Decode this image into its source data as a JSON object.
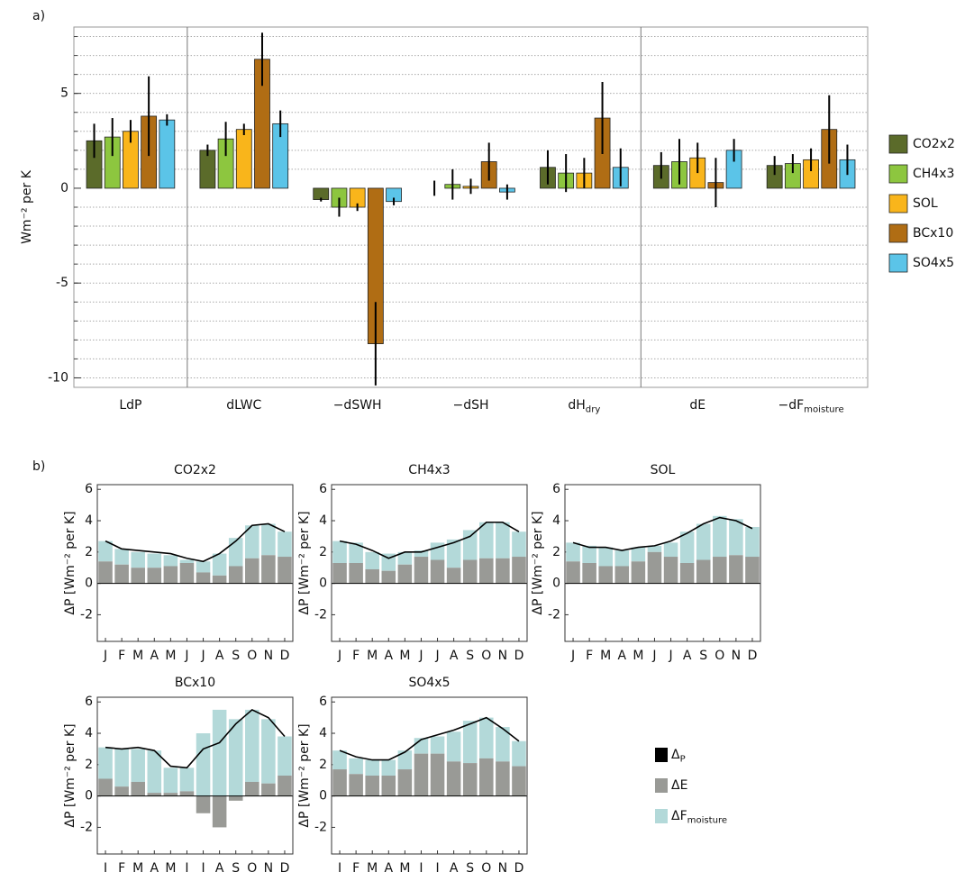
{
  "chart_data": [
    {
      "type": "bar",
      "panel_label": "a)",
      "ylabel": "Wm⁻² per K",
      "categories": [
        "LdP",
        "dLWC",
        "−dSWH",
        "−dSH",
        "dH_dry",
        "dE",
        "−dF_moisture"
      ],
      "ylim": [
        -10.5,
        8.5
      ],
      "yticks": [
        -10,
        -5,
        0,
        5
      ],
      "minor_yticks": [
        -10,
        -9,
        -8,
        -7,
        -6,
        -5,
        -4,
        -3,
        -2,
        -1,
        1,
        2,
        3,
        4,
        5,
        6,
        7,
        8
      ],
      "grid": true,
      "legend": "right",
      "series": [
        {
          "name": "CO2x2",
          "color": "#5b6b2a",
          "values": [
            2.5,
            2.0,
            -0.6,
            0.0,
            1.1,
            1.2,
            1.2
          ],
          "errors": [
            0.9,
            0.3,
            0.1,
            0.4,
            0.9,
            0.7,
            0.5
          ]
        },
        {
          "name": "CH4x3",
          "color": "#8dc63f",
          "values": [
            2.7,
            2.6,
            -1.0,
            0.2,
            0.8,
            1.4,
            1.3
          ],
          "errors": [
            1.0,
            0.9,
            0.5,
            0.8,
            1.0,
            1.2,
            0.5
          ]
        },
        {
          "name": "SOL",
          "color": "#f9b51b",
          "values": [
            3.0,
            3.1,
            -1.0,
            0.1,
            0.8,
            1.6,
            1.5
          ],
          "errors": [
            0.6,
            0.3,
            0.2,
            0.4,
            0.8,
            0.8,
            0.6
          ]
        },
        {
          "name": "BCx10",
          "color": "#b06d14",
          "values": [
            3.8,
            6.8,
            -8.2,
            1.4,
            3.7,
            0.3,
            3.1
          ],
          "errors": [
            2.1,
            1.4,
            2.2,
            1.0,
            1.9,
            1.3,
            1.8
          ]
        },
        {
          "name": "SO4x5",
          "color": "#5bc4e8",
          "values": [
            3.6,
            3.4,
            -0.7,
            -0.2,
            1.1,
            2.0,
            1.5
          ],
          "errors": [
            0.3,
            0.7,
            0.2,
            0.4,
            1.0,
            0.6,
            0.8
          ]
        }
      ]
    },
    {
      "type": "combo",
      "panel_label": "b)",
      "title": "CO2x2",
      "ylabel": "ΔP [Wm⁻² per K]",
      "categories": [
        "J",
        "F",
        "M",
        "A",
        "M",
        "J",
        "J",
        "A",
        "S",
        "O",
        "N",
        "D"
      ],
      "ylim": [
        -3.7,
        6.3
      ],
      "yticks": [
        -2,
        0,
        2,
        4,
        6
      ],
      "series": [
        {
          "name": "Δ_P",
          "color": "#000000",
          "mark": "line",
          "values": [
            2.7,
            2.2,
            2.1,
            2.0,
            1.9,
            1.6,
            1.4,
            1.9,
            2.7,
            3.7,
            3.8,
            3.3
          ]
        },
        {
          "name": "ΔE",
          "color": "#999a96",
          "mark": "bar",
          "values": [
            1.4,
            1.2,
            1.0,
            1.0,
            1.1,
            1.3,
            0.7,
            0.5,
            1.1,
            1.6,
            1.8,
            1.7
          ]
        },
        {
          "name": "ΔF_moisture",
          "color": "#b3d9d9",
          "mark": "bar",
          "values": [
            1.3,
            1.0,
            1.0,
            0.9,
            0.7,
            0.2,
            0.7,
            1.4,
            1.8,
            2.1,
            2.0,
            1.6
          ]
        }
      ]
    },
    {
      "type": "combo",
      "title": "CH4x3",
      "categories": [
        "J",
        "F",
        "M",
        "A",
        "M",
        "J",
        "J",
        "A",
        "S",
        "O",
        "N",
        "D"
      ],
      "ylim": [
        -3.7,
        6.3
      ],
      "yticks": [
        -2,
        0,
        2,
        4,
        6
      ],
      "series": [
        {
          "values": [
            2.7,
            2.5,
            2.1,
            1.6,
            2.0,
            2.0,
            2.3,
            2.6,
            3.0,
            3.9,
            3.9,
            3.3
          ]
        },
        {
          "values": [
            1.3,
            1.3,
            0.9,
            0.8,
            1.2,
            1.7,
            1.5,
            1.0,
            1.5,
            1.6,
            1.6,
            1.7
          ]
        },
        {
          "values": [
            1.4,
            1.3,
            1.1,
            1.1,
            0.8,
            0.4,
            1.1,
            1.8,
            1.9,
            2.3,
            2.3,
            1.6
          ]
        }
      ]
    },
    {
      "type": "combo",
      "title": "SOL",
      "categories": [
        "J",
        "F",
        "M",
        "A",
        "M",
        "J",
        "J",
        "A",
        "S",
        "O",
        "N",
        "D"
      ],
      "ylim": [
        -3.7,
        6.3
      ],
      "yticks": [
        -2,
        0,
        2,
        4,
        6
      ],
      "series": [
        {
          "values": [
            2.6,
            2.3,
            2.3,
            2.1,
            2.3,
            2.4,
            2.7,
            3.2,
            3.8,
            4.2,
            4.0,
            3.5
          ]
        },
        {
          "values": [
            1.4,
            1.3,
            1.1,
            1.1,
            1.4,
            2.0,
            1.7,
            1.3,
            1.5,
            1.7,
            1.8,
            1.7
          ]
        },
        {
          "values": [
            1.2,
            1.1,
            1.2,
            1.0,
            0.9,
            0.4,
            0.9,
            2.0,
            2.3,
            2.6,
            2.3,
            1.9
          ]
        }
      ]
    },
    {
      "type": "combo",
      "title": "BCx10",
      "categories": [
        "J",
        "F",
        "M",
        "A",
        "M",
        "J",
        "J",
        "A",
        "S",
        "O",
        "N",
        "D"
      ],
      "ylim": [
        -3.7,
        6.3
      ],
      "yticks": [
        -2,
        0,
        2,
        4,
        6
      ],
      "series": [
        {
          "values": [
            3.1,
            3.0,
            3.1,
            2.9,
            1.9,
            1.8,
            3.0,
            3.4,
            4.6,
            5.5,
            5.0,
            3.8
          ]
        },
        {
          "values": [
            1.1,
            0.6,
            0.9,
            0.2,
            0.2,
            0.3,
            -1.1,
            -2.0,
            -0.3,
            0.9,
            0.8,
            1.3
          ]
        },
        {
          "values": [
            2.0,
            2.4,
            2.1,
            2.7,
            1.6,
            1.5,
            4.0,
            5.5,
            4.9,
            4.6,
            4.1,
            2.5
          ]
        }
      ]
    },
    {
      "type": "combo",
      "title": "SO4x5",
      "categories": [
        "J",
        "F",
        "M",
        "A",
        "M",
        "J",
        "J",
        "A",
        "S",
        "O",
        "N",
        "D"
      ],
      "ylim": [
        -3.7,
        6.3
      ],
      "yticks": [
        -2,
        0,
        2,
        4,
        6
      ],
      "series": [
        {
          "values": [
            2.9,
            2.5,
            2.3,
            2.3,
            2.8,
            3.6,
            3.9,
            4.2,
            4.6,
            5.0,
            4.3,
            3.5
          ]
        },
        {
          "values": [
            1.7,
            1.4,
            1.3,
            1.3,
            1.7,
            2.7,
            2.7,
            2.2,
            2.1,
            2.4,
            2.2,
            1.9
          ]
        },
        {
          "values": [
            1.2,
            1.0,
            1.0,
            1.0,
            1.2,
            1.0,
            1.1,
            1.9,
            2.7,
            2.6,
            2.2,
            1.6
          ]
        }
      ]
    }
  ]
}
